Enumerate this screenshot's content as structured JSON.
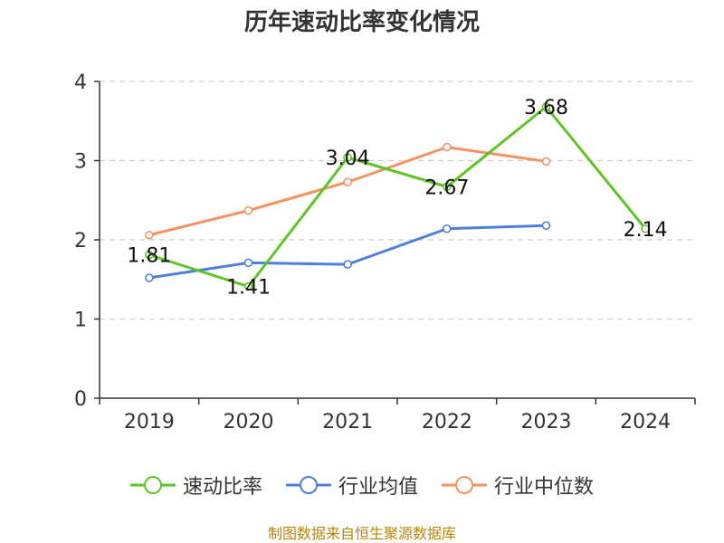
{
  "title": "历年速动比率变化情况",
  "source_text": "制图数据来自恒生聚源数据库",
  "colors": {
    "speed_ratio": "#5ec427",
    "industry_avg": "#4f7fdb",
    "industry_median": "#f59263",
    "grid": "#cccccc",
    "axis": "#333333",
    "source": "#b8860b"
  },
  "legend": {
    "items": [
      {
        "label": "速动比率",
        "color_key": "speed_ratio"
      },
      {
        "label": "行业均值",
        "color_key": "industry_avg"
      },
      {
        "label": "行业中位数",
        "color_key": "industry_median"
      }
    ]
  },
  "chart_data": {
    "type": "line",
    "title": "历年速动比率变化情况",
    "categories": [
      "2019",
      "2020",
      "2021",
      "2022",
      "2023",
      "2024"
    ],
    "ylim": [
      0,
      4
    ],
    "yticks": [
      0,
      1,
      2,
      3,
      4
    ],
    "grid": true,
    "legend_position": "bottom",
    "series": [
      {
        "name": "速动比率",
        "color_key": "speed_ratio",
        "values": [
          1.81,
          1.41,
          3.04,
          2.67,
          3.68,
          2.14
        ],
        "labels": [
          "1.81",
          "1.41",
          "3.04",
          "2.67",
          "3.68",
          "2.14"
        ]
      },
      {
        "name": "行业均值",
        "color_key": "industry_avg",
        "values": [
          1.52,
          1.71,
          1.69,
          2.14,
          2.18,
          null
        ]
      },
      {
        "name": "行业中位数",
        "color_key": "industry_median",
        "values": [
          2.06,
          2.37,
          2.73,
          3.17,
          2.99,
          null
        ]
      }
    ]
  }
}
